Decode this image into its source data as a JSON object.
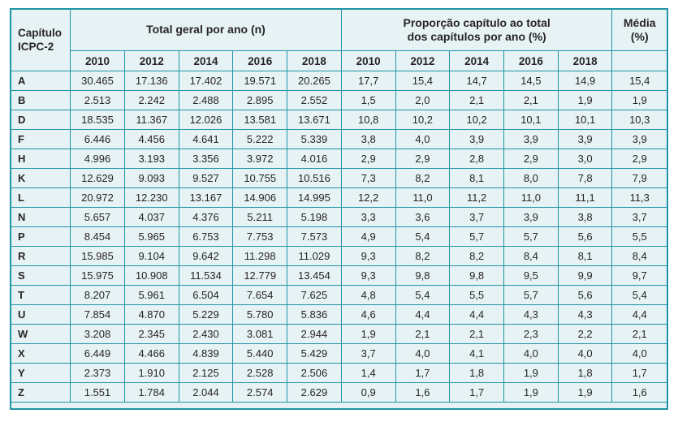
{
  "colors": {
    "border_teal": "#1e95a4",
    "background_cyan": "#e7f2f4",
    "text": "#262429"
  },
  "chart_data": {
    "type": "table",
    "title": "",
    "headers": {
      "chapter": "Capítulo\nICPC-2",
      "totals_group": "Total geral por ano (n)",
      "proportions_group": "Proporção capítulo ao total\ndos capítulos por ano (%)",
      "media": "Média\n(%)"
    },
    "years": [
      "2010",
      "2012",
      "2014",
      "2016",
      "2018"
    ],
    "rows": [
      {
        "chapter": "A",
        "totals": [
          "30.465",
          "17.136",
          "17.402",
          "19.571",
          "20.265"
        ],
        "proportions": [
          "17,7",
          "15,4",
          "14,7",
          "14,5",
          "14,9"
        ],
        "media": "15,4"
      },
      {
        "chapter": "B",
        "totals": [
          "2.513",
          "2.242",
          "2.488",
          "2.895",
          "2.552"
        ],
        "proportions": [
          "1,5",
          "2,0",
          "2,1",
          "2,1",
          "1,9"
        ],
        "media": "1,9"
      },
      {
        "chapter": "D",
        "totals": [
          "18.535",
          "11.367",
          "12.026",
          "13.581",
          "13.671"
        ],
        "proportions": [
          "10,8",
          "10,2",
          "10,2",
          "10,1",
          "10,1"
        ],
        "media": "10,3"
      },
      {
        "chapter": "F",
        "totals": [
          "6.446",
          "4.456",
          "4.641",
          "5.222",
          "5.339"
        ],
        "proportions": [
          "3,8",
          "4,0",
          "3,9",
          "3,9",
          "3,9"
        ],
        "media": "3,9"
      },
      {
        "chapter": "H",
        "totals": [
          "4.996",
          "3.193",
          "3.356",
          "3.972",
          "4.016"
        ],
        "proportions": [
          "2,9",
          "2,9",
          "2,8",
          "2,9",
          "3,0"
        ],
        "media": "2,9"
      },
      {
        "chapter": "K",
        "totals": [
          "12.629",
          "9.093",
          "9.527",
          "10.755",
          "10.516"
        ],
        "proportions": [
          "7,3",
          "8,2",
          "8,1",
          "8,0",
          "7,8"
        ],
        "media": "7,9"
      },
      {
        "chapter": "L",
        "totals": [
          "20.972",
          "12.230",
          "13.167",
          "14.906",
          "14.995"
        ],
        "proportions": [
          "12,2",
          "11,0",
          "11,2",
          "11,0",
          "11,1"
        ],
        "media": "11,3"
      },
      {
        "chapter": "N",
        "totals": [
          "5.657",
          "4.037",
          "4.376",
          "5.211",
          "5.198"
        ],
        "proportions": [
          "3,3",
          "3,6",
          "3,7",
          "3,9",
          "3,8"
        ],
        "media": "3,7"
      },
      {
        "chapter": "P",
        "totals": [
          "8.454",
          "5.965",
          "6.753",
          "7.753",
          "7.573"
        ],
        "proportions": [
          "4,9",
          "5,4",
          "5,7",
          "5,7",
          "5,6"
        ],
        "media": "5,5"
      },
      {
        "chapter": "R",
        "totals": [
          "15.985",
          "9.104",
          "9.642",
          "11.298",
          "11.029"
        ],
        "proportions": [
          "9,3",
          "8,2",
          "8,2",
          "8,4",
          "8,1"
        ],
        "media": "8,4"
      },
      {
        "chapter": "S",
        "totals": [
          "15.975",
          "10.908",
          "11.534",
          "12.779",
          "13.454"
        ],
        "proportions": [
          "9,3",
          "9,8",
          "9,8",
          "9,5",
          "9,9"
        ],
        "media": "9,7"
      },
      {
        "chapter": "T",
        "totals": [
          "8.207",
          "5.961",
          "6.504",
          "7.654",
          "7.625"
        ],
        "proportions": [
          "4,8",
          "5,4",
          "5,5",
          "5,7",
          "5,6"
        ],
        "media": "5,4"
      },
      {
        "chapter": "U",
        "totals": [
          "7.854",
          "4.870",
          "5.229",
          "5.780",
          "5.836"
        ],
        "proportions": [
          "4,6",
          "4,4",
          "4,4",
          "4,3",
          "4,3"
        ],
        "media": "4,4"
      },
      {
        "chapter": "W",
        "totals": [
          "3.208",
          "2.345",
          "2.430",
          "3.081",
          "2.944"
        ],
        "proportions": [
          "1,9",
          "2,1",
          "2,1",
          "2,3",
          "2,2"
        ],
        "media": "2,1"
      },
      {
        "chapter": "X",
        "totals": [
          "6.449",
          "4.466",
          "4.839",
          "5.440",
          "5.429"
        ],
        "proportions": [
          "3,7",
          "4,0",
          "4,1",
          "4,0",
          "4,0"
        ],
        "media": "4,0"
      },
      {
        "chapter": "Y",
        "totals": [
          "2.373",
          "1.910",
          "2.125",
          "2.528",
          "2.506"
        ],
        "proportions": [
          "1,4",
          "1,7",
          "1,8",
          "1,9",
          "1,8"
        ],
        "media": "1,7"
      },
      {
        "chapter": "Z",
        "totals": [
          "1.551",
          "1.784",
          "2.044",
          "2.574",
          "2.629"
        ],
        "proportions": [
          "0,9",
          "1,6",
          "1,7",
          "1,9",
          "1,9"
        ],
        "media": "1,6"
      }
    ]
  }
}
